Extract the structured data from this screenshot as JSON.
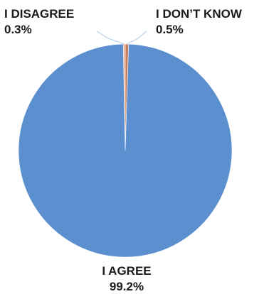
{
  "chart_data": {
    "type": "pie",
    "categories": [
      "I DISAGREE",
      "I DON’T KNOW",
      "I AGREE"
    ],
    "values": [
      0.3,
      0.5,
      99.2
    ],
    "value_labels": [
      "0.3%",
      "0.5%",
      "99.2%"
    ],
    "colors": [
      "#e6a989",
      "#c9805d",
      "#5b8fd0"
    ],
    "leader_line_color": "#bcd1e6",
    "legend": "none"
  }
}
